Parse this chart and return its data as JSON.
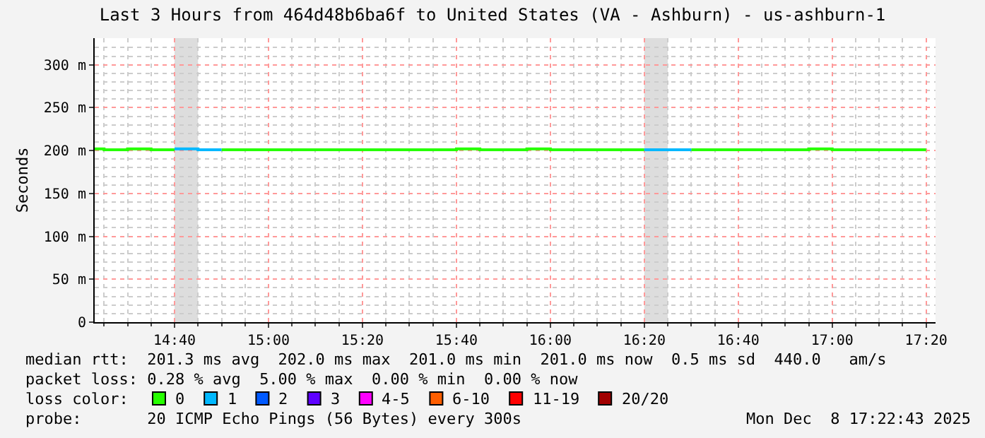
{
  "chart_data": {
    "type": "step",
    "title": "Last 3 Hours from 464d48b6ba6f to United States (VA - Ashburn) - us-ashburn-1",
    "ylabel": "Seconds",
    "legend_title": "loss color:",
    "xlim": [
      "2025-12-08T14:23",
      "2025-12-08T17:22"
    ],
    "xticks": [
      {
        "value": "2025-12-08T14:40",
        "label": "14:40"
      },
      {
        "value": "2025-12-08T15:00",
        "label": "15:00"
      },
      {
        "value": "2025-12-08T15:20",
        "label": "15:20"
      },
      {
        "value": "2025-12-08T15:40",
        "label": "15:40"
      },
      {
        "value": "2025-12-08T16:00",
        "label": "16:00"
      },
      {
        "value": "2025-12-08T16:20",
        "label": "16:20"
      },
      {
        "value": "2025-12-08T16:40",
        "label": "16:40"
      },
      {
        "value": "2025-12-08T17:00",
        "label": "17:00"
      },
      {
        "value": "2025-12-08T17:20",
        "label": "17:20"
      }
    ],
    "ylim": [
      0,
      331
    ],
    "yticks": [
      0,
      {
        "value": 50,
        "label": "50 m"
      },
      {
        "value": 100,
        "label": "100 m"
      },
      {
        "value": 150,
        "label": "150 m"
      },
      {
        "value": 200,
        "label": "200 m"
      },
      {
        "value": 250,
        "label": "250 m"
      },
      {
        "value": 300,
        "label": "300 m"
      }
    ],
    "grid": true,
    "legend": "bottom",
    "series": [
      {
        "name": "0",
        "color": "#26ff00",
        "x": [
          "2025-12-08T14:23",
          "2025-12-08T14:25",
          "2025-12-08T14:30",
          "2025-12-08T14:35",
          "2025-12-08T14:40",
          "2025-12-08T14:45",
          "2025-12-08T14:50",
          "2025-12-08T15:40",
          "2025-12-08T15:45",
          "2025-12-08T15:55",
          "2025-12-08T16:00",
          "2025-12-08T16:20",
          "2025-12-08T16:25",
          "2025-12-08T16:30",
          "2025-12-08T16:55",
          "2025-12-08T17:00",
          "2025-12-08T17:20"
        ],
        "values": [
          202,
          201,
          202,
          201,
          201,
          null,
          201,
          202,
          201,
          202,
          201,
          201,
          null,
          201,
          202,
          201,
          201
        ]
      },
      {
        "name": "1",
        "color": "#00b8ff",
        "x": [
          "2025-12-08T14:40",
          "2025-12-08T14:45",
          "2025-12-08T14:50",
          "2025-12-08T15:00",
          "2025-12-08T16:20",
          "2025-12-08T16:30"
        ],
        "values": [
          202,
          201,
          201,
          null,
          201,
          201
        ]
      },
      {
        "name": "2",
        "color": "#0059ff"
      },
      {
        "name": "3",
        "color": "#5e00ff"
      },
      {
        "name": "4-5",
        "color": "#ff00ff"
      },
      {
        "name": "6-10",
        "color": "#ff5e00"
      },
      {
        "name": "11-19",
        "color": "#ff0000"
      },
      {
        "name": "20/20",
        "color": "#a10000"
      }
    ],
    "bands": [
      {
        "axis": "x",
        "from": "2025-12-08T14:40",
        "to": "2025-12-08T14:45",
        "color": "#dddddd"
      },
      {
        "axis": "x",
        "from": "2025-12-08T16:20",
        "to": "2025-12-08T16:25",
        "color": "#dddddd"
      }
    ],
    "annotations": [
      "median rtt:  201.3 ms avg  202.0 ms max  201.0 ms min  201.0 ms now  0.5 ms sd  440.0   am/s",
      "packet loss: 0.28 % avg  5.00 % max  0.00 % min  0.00 % now",
      "probe:       20 ICMP Echo Pings (56 Bytes) every 300s",
      "Mon Dec  8 17:22:43 2025"
    ]
  }
}
